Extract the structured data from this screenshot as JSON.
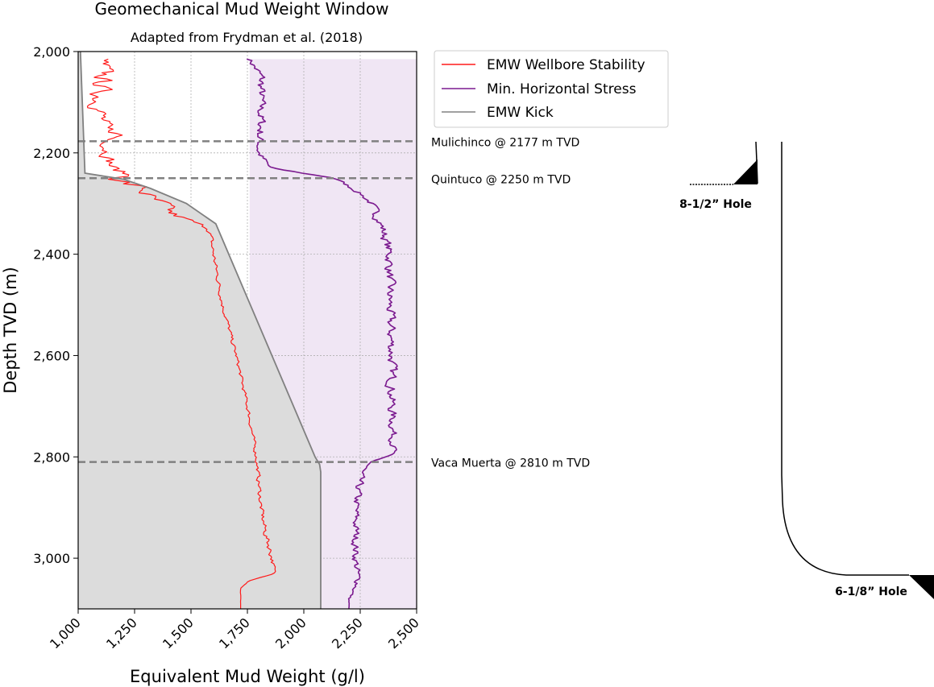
{
  "chart_data": {
    "type": "line",
    "title": "Geomechanical Mud Weight Window",
    "subtitle": "Adapted from Frydman et al. (2018)",
    "xlabel": "Equivalent Mud Weight (g/l)",
    "ylabel": "Depth TVD (m)",
    "xlim": [
      1000,
      2500
    ],
    "ylim": [
      3100,
      2000
    ],
    "y_inverted": true,
    "grid": true,
    "legend_position": "outside-top-right",
    "xticks": [
      1000,
      1250,
      1500,
      1750,
      2000,
      2250,
      2500
    ],
    "xtick_labels": [
      "1,000",
      "1,250",
      "1,500",
      "1,750",
      "2,000",
      "2,250",
      "2,500"
    ],
    "yticks": [
      2000,
      2200,
      2400,
      2600,
      2800,
      3000
    ],
    "ytick_labels": [
      "2,000",
      "2,200",
      "2,400",
      "2,600",
      "2,800",
      "3,000"
    ],
    "series": [
      {
        "name": "EMW Wellbore Stability",
        "color": "#ff1a1a",
        "kind": "noisy-line",
        "depth": [
          2015,
          2050,
          2100,
          2150,
          2165,
          2175,
          2200,
          2230,
          2245,
          2255,
          2270,
          2290,
          2300,
          2320,
          2335,
          2350,
          2400,
          2500,
          2600,
          2700,
          2800,
          2900,
          2950,
          3000,
          3030,
          3045,
          3060,
          3100
        ],
        "emw": [
          1100,
          1110,
          1090,
          1110,
          1190,
          1130,
          1130,
          1150,
          1230,
          1170,
          1280,
          1320,
          1380,
          1410,
          1500,
          1580,
          1600,
          1640,
          1700,
          1750,
          1790,
          1810,
          1830,
          1860,
          1870,
          1760,
          1720,
          1720
        ],
        "noise": [
          120,
          120,
          110,
          100,
          60,
          70,
          80,
          90,
          80,
          200,
          140,
          100,
          80,
          100,
          60,
          30,
          25,
          22,
          20,
          20,
          20,
          25,
          30,
          30,
          15,
          10,
          5,
          0
        ]
      },
      {
        "name": "Min. Horizontal Stress",
        "color": "#7b1a8f",
        "kind": "noisy-line",
        "depth": [
          2015,
          2050,
          2100,
          2150,
          2200,
          2230,
          2250,
          2280,
          2300,
          2350,
          2400,
          2500,
          2600,
          2700,
          2790,
          2810,
          2830,
          2900,
          3000,
          3050,
          3080,
          3100
        ],
        "emw": [
          1760,
          1810,
          1810,
          1810,
          1800,
          1850,
          2140,
          2250,
          2300,
          2350,
          2380,
          2380,
          2390,
          2390,
          2400,
          2300,
          2250,
          2230,
          2230,
          2240,
          2200,
          2200
        ],
        "noise": [
          40,
          60,
          50,
          60,
          45,
          40,
          30,
          35,
          45,
          55,
          55,
          55,
          55,
          55,
          40,
          40,
          45,
          45,
          45,
          40,
          10,
          0
        ]
      },
      {
        "name": "EMW Kick",
        "color": "#808080",
        "kind": "line-fill",
        "fill_color": "#dcdcdc",
        "depth": [
          2000,
          2240,
          2252,
          2270,
          2300,
          2340,
          2800,
          2815,
          2830,
          3100
        ],
        "emw": [
          1010,
          1030,
          1200,
          1320,
          1480,
          1610,
          2050,
          2070,
          2075,
          2075
        ]
      }
    ],
    "shaded_window": {
      "from_depth": 2015,
      "to_depth": 3100,
      "xmax": 2500,
      "color": "#f0e6f4"
    },
    "formation_tops": [
      {
        "name": "Mulichinco @ 2177 m TVD",
        "depth": 2177
      },
      {
        "name": "Quintuco @ 2250 m TVD",
        "depth": 2250
      },
      {
        "name": "Vaca Muerta @ 2810 m TVD",
        "depth": 2810
      }
    ],
    "casing_labels": [
      "8-1/2” Hole",
      "6-1/8” Hole"
    ]
  }
}
